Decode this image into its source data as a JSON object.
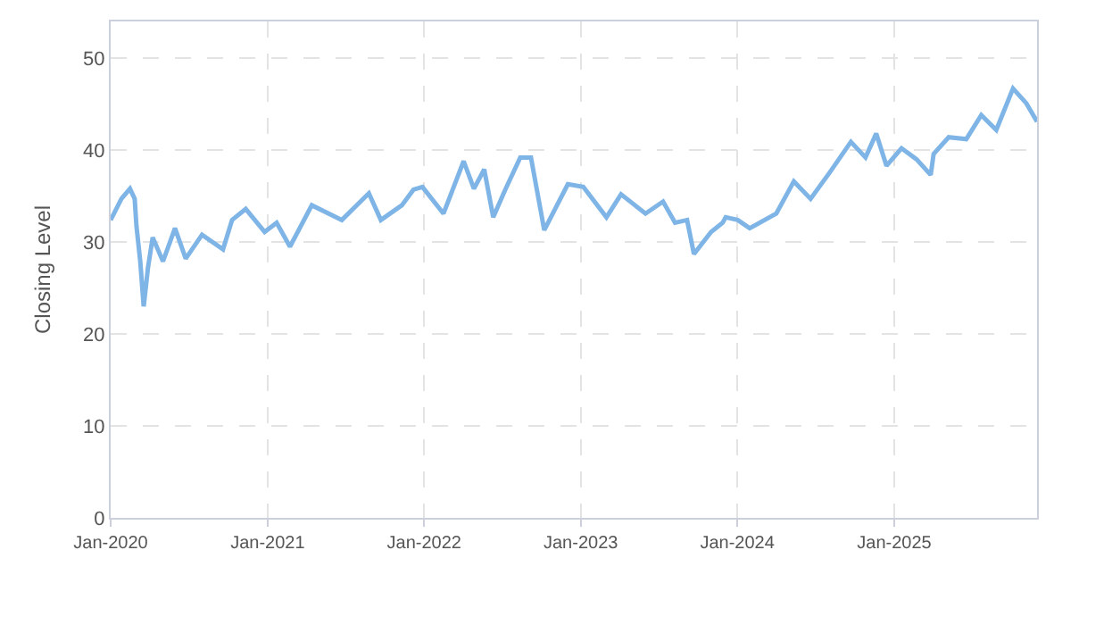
{
  "chart_data": {
    "type": "line",
    "ylabel": "Closing Level",
    "x": [
      "2020-01-01",
      "2020-01-26",
      "2020-02-15",
      "2020-02-26",
      "2020-03-01",
      "2020-03-10",
      "2020-03-18",
      "2020-03-28",
      "2020-04-08",
      "2020-05-02",
      "2020-05-30",
      "2020-06-24",
      "2020-08-01",
      "2020-09-19",
      "2020-10-10",
      "2020-11-11",
      "2020-12-25",
      "2021-01-22",
      "2021-02-22",
      "2021-04-14",
      "2021-06-23",
      "2021-08-25",
      "2021-09-22",
      "2021-11-10",
      "2021-12-07",
      "2021-12-28",
      "2022-02-15",
      "2022-04-03",
      "2022-04-27",
      "2022-05-21",
      "2022-06-11",
      "2022-07-09",
      "2022-08-13",
      "2022-09-07",
      "2022-10-08",
      "2022-12-02",
      "2023-01-07",
      "2023-03-02",
      "2023-04-05",
      "2023-06-01",
      "2023-07-12",
      "2023-08-09",
      "2023-09-06",
      "2023-09-22",
      "2023-11-01",
      "2023-11-28",
      "2023-12-05",
      "2024-01-02",
      "2024-01-30",
      "2024-04-01",
      "2024-05-12",
      "2024-06-20",
      "2024-08-04",
      "2024-09-22",
      "2024-10-26",
      "2024-11-20",
      "2024-12-14",
      "2025-01-18",
      "2025-02-22",
      "2025-03-27",
      "2025-04-03",
      "2025-05-08",
      "2025-06-18",
      "2025-07-23",
      "2025-08-27",
      "2025-10-05",
      "2025-11-05",
      "2025-11-30"
    ],
    "series": [
      {
        "color": "#7eb4e6",
        "values": [
          32.4,
          34.7,
          35.8,
          34.7,
          31.8,
          27.9,
          23.0,
          27.2,
          30.5,
          27.9,
          31.5,
          28.2,
          30.8,
          29.2,
          32.4,
          33.6,
          31.1,
          32.1,
          29.5,
          34.0,
          32.4,
          35.3,
          32.4,
          34.0,
          35.7,
          36.0,
          33.1,
          38.8,
          35.8,
          37.9,
          32.7,
          35.7,
          39.2,
          39.2,
          31.3,
          36.3,
          36.0,
          32.7,
          35.2,
          33.1,
          34.4,
          32.1,
          32.4,
          28.7,
          31.1,
          32.1,
          32.7,
          32.4,
          31.5,
          33.1,
          36.6,
          34.7,
          37.6,
          40.9,
          39.2,
          41.8,
          38.3,
          40.2,
          39.0,
          37.3,
          39.6,
          41.4,
          41.2,
          43.8,
          42.2,
          46.7,
          45.1,
          43.1
        ]
      }
    ],
    "xlim": [
      "2020-01-01",
      "2025-11-30"
    ],
    "xticks": [
      {
        "value": "2020-01-01",
        "label": "Jan-2020"
      },
      {
        "value": "2021-01-01",
        "label": "Jan-2021"
      },
      {
        "value": "2022-01-01",
        "label": "Jan-2022"
      },
      {
        "value": "2023-01-01",
        "label": "Jan-2023"
      },
      {
        "value": "2024-01-01",
        "label": "Jan-2024"
      },
      {
        "value": "2025-01-01",
        "label": "Jan-2025"
      }
    ],
    "ylim": [
      0,
      54
    ],
    "yticks": [
      0,
      10,
      20,
      30,
      40,
      50
    ],
    "grid": true,
    "marker": "none",
    "line_style": "solid"
  }
}
